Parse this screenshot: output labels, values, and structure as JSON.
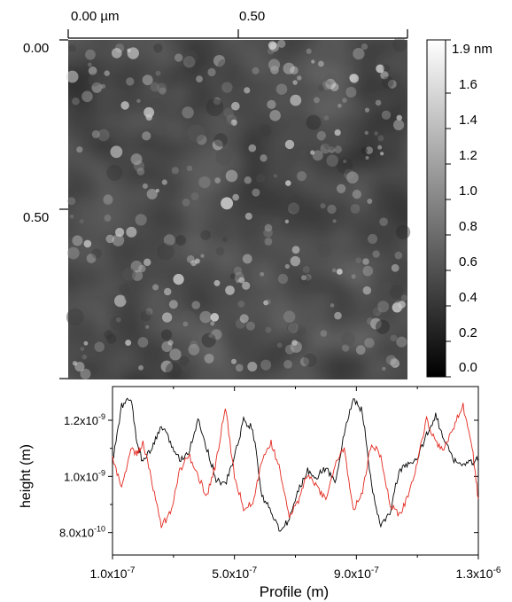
{
  "afm_image": {
    "x_axis_labels": [
      "0.00 µm",
      "0.50"
    ],
    "y_axis_labels": [
      "0.00",
      "0.50"
    ],
    "colorbar": {
      "labels": [
        "1.9 nm",
        "1.6",
        "1.4",
        "1.2",
        "1.0",
        "0.8",
        "0.6",
        "0.4",
        "0.2",
        "0.0"
      ],
      "values": [
        1.9,
        1.6,
        1.4,
        1.2,
        1.0,
        0.8,
        0.6,
        0.4,
        0.2,
        0.0
      ],
      "range": [
        0.0,
        1.9
      ],
      "colormap": "grayscale"
    }
  },
  "chart_data": {
    "type": "line",
    "xlabel": "Profile (m)",
    "ylabel": "height (m)",
    "xlim": [
      1e-07,
      1.3e-06
    ],
    "ylim": [
      7.2e-10,
      1.32e-09
    ],
    "x_tick_labels": [
      "1.0x10-7",
      "5.0x10-7",
      "9.0x10-7",
      "1.3x10-6"
    ],
    "x_ticks": [
      1e-07,
      5e-07,
      9e-07,
      1.3e-06
    ],
    "y_tick_labels": [
      "1.2x10-9",
      "1.0x10-9",
      "8.0x10-10"
    ],
    "y_ticks": [
      1.2e-09,
      1e-09,
      8e-10
    ],
    "x": [
      1e-07,
      1.3e-07,
      1.6e-07,
      1.8e-07,
      2e-07,
      2.3e-07,
      2.6e-07,
      2.9e-07,
      3.2e-07,
      3.5e-07,
      3.8e-07,
      4.1e-07,
      4.4e-07,
      4.7e-07,
      5e-07,
      5.3e-07,
      5.6e-07,
      5.9e-07,
      6.2e-07,
      6.5e-07,
      6.8e-07,
      7.1e-07,
      7.4e-07,
      7.7e-07,
      8e-07,
      8.3e-07,
      8.6e-07,
      8.9e-07,
      9.2e-07,
      9.5e-07,
      9.8e-07,
      1.01e-06,
      1.04e-06,
      1.07e-06,
      1.1e-06,
      1.13e-06,
      1.16e-06,
      1.19e-06,
      1.22e-06,
      1.25e-06,
      1.28e-06,
      1.3e-06
    ],
    "series": [
      {
        "color": "#000000",
        "values": [
          1.05e-09,
          1.25e-09,
          1.28e-09,
          1.12e-09,
          1.05e-09,
          1.1e-09,
          1.18e-09,
          1.12e-09,
          1.06e-09,
          1.09e-09,
          1.2e-09,
          1.1e-09,
          9.9e-10,
          9.7e-10,
          1.07e-09,
          1.2e-09,
          1.17e-09,
          9.3e-10,
          8.8e-10,
          8e-10,
          8.5e-10,
          9.5e-10,
          1.02e-09,
          1e-09,
          1.03e-09,
          9.8e-10,
          1.15e-09,
          1.28e-09,
          1.23e-09,
          9.6e-10,
          8.2e-10,
          8.7e-10,
          1.02e-09,
          1.04e-09,
          1.06e-09,
          1.15e-09,
          1.22e-09,
          1.12e-09,
          1.06e-09,
          1.04e-09,
          1.05e-09,
          1.06e-09
        ]
      },
      {
        "color": "#e3281e",
        "values": [
          1.07e-09,
          9.6e-10,
          1.1e-09,
          1.08e-09,
          1.12e-09,
          9.8e-10,
          8.2e-10,
          8.7e-10,
          1.02e-09,
          1.08e-09,
          1e-09,
          9.3e-10,
          1.05e-09,
          1.25e-09,
          1e-09,
          8.9e-10,
          9e-10,
          1.05e-09,
          1.12e-09,
          1.02e-09,
          8.6e-10,
          9.1e-10,
          1.01e-09,
          9.6e-10,
          9.2e-10,
          1.04e-09,
          1.1e-09,
          8.8e-10,
          9.5e-10,
          1.12e-09,
          1.07e-09,
          9e-10,
          8.6e-10,
          9.3e-10,
          1.05e-09,
          1.2e-09,
          1.12e-09,
          1.1e-09,
          1.18e-09,
          1.25e-09,
          1.1e-09,
          9.2e-10
        ]
      }
    ]
  }
}
